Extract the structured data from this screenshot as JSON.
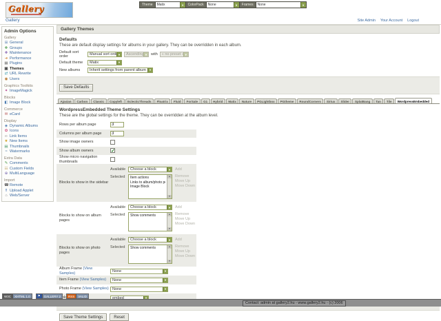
{
  "icons": {
    "dropdown_arrow": "▼",
    "scroll_up": "▲",
    "scroll_down": "▼",
    "checkmark": "✓"
  },
  "logo": {
    "title": "Gallery"
  },
  "topbar": {
    "theme_label": "Theme",
    "theme_value": "Matix",
    "colorpack_label": "ColorPack",
    "colorpack_value": "None",
    "frames_label": "Frames",
    "frames_value": "None"
  },
  "nav": {
    "breadcrumb": "Gallery",
    "links": [
      "Site Admin",
      "Your Account",
      "Logout"
    ]
  },
  "sidebar": {
    "title": "Admin Options",
    "entries": [
      {
        "label": "Gallery",
        "header": true
      },
      {
        "label": "General",
        "icon": "⊞",
        "icon_color": "#6b8cba"
      },
      {
        "label": "Groups",
        "icon": "❖",
        "icon_color": "#4a9a4a"
      },
      {
        "label": "Maintenance",
        "icon": "✚",
        "icon_color": "#8a6ab5"
      },
      {
        "label": "Performance",
        "icon": "➜",
        "icon_color": "#d08030"
      },
      {
        "label": "Plugins",
        "icon": "▦",
        "icon_color": "#777777"
      },
      {
        "label": "Themes",
        "icon": "▣",
        "icon_color": "#444444",
        "current": true
      },
      {
        "label": "URL Rewrite",
        "icon": "⇄",
        "icon_color": "#3a9ab0"
      },
      {
        "label": "Users",
        "icon": "◉",
        "icon_color": "#b5742a"
      },
      {
        "label": "Graphics Toolkits",
        "header": true
      },
      {
        "label": "ImageMagick",
        "icon": "✦",
        "icon_color": "#b03a8a"
      },
      {
        "label": "Blocks",
        "header": true
      },
      {
        "label": "Image Block",
        "icon": "◧",
        "icon_color": "#4a7ab0"
      },
      {
        "label": "Commerce",
        "header": true
      },
      {
        "label": "eCard",
        "icon": "✉",
        "icon_color": "#b04a4a"
      },
      {
        "label": "Display",
        "header": true
      },
      {
        "label": "Dynamic Albums",
        "icon": "◈",
        "icon_color": "#4a7ab0"
      },
      {
        "label": "Icons",
        "icon": "✿",
        "icon_color": "#d04a7a"
      },
      {
        "label": "Link Items",
        "icon": "∞",
        "icon_color": "#888888"
      },
      {
        "label": "New Items",
        "icon": "★",
        "icon_color": "#d0a020"
      },
      {
        "label": "Thumbnails",
        "icon": "▤",
        "icon_color": "#4a9a6a"
      },
      {
        "label": "Watermarks",
        "icon": "≈",
        "icon_color": "#6a8ab0"
      },
      {
        "label": "Extra Data",
        "header": true
      },
      {
        "label": "Comments",
        "icon": "✎",
        "icon_color": "#4a9a4a"
      },
      {
        "label": "Custom Fields",
        "icon": "☷",
        "icon_color": "#b08a3a"
      },
      {
        "label": "MultiLanguage",
        "icon": "⊕",
        "icon_color": "#7a6ab0"
      },
      {
        "label": "Import",
        "header": true
      },
      {
        "label": "Remote",
        "icon": "☎",
        "icon_color": "#555555"
      },
      {
        "label": "Upload Applet",
        "icon": "⇑",
        "icon_color": "#3a6ab0"
      },
      {
        "label": "Web/Server",
        "icon": "⌂",
        "icon_color": "#888888"
      }
    ]
  },
  "main": {
    "title": "Gallery Themes",
    "defaults": {
      "heading": "Defaults",
      "description": "These are default display settings for albums in your gallery. They can be overridden in each album.",
      "sort_label": "Default sort order",
      "sort_value": "Manual sort order",
      "sort_dir_value": "Ascending",
      "with_label": "with",
      "preset_value": "« no preset »",
      "theme_label": "Default theme",
      "theme_value": "Matix",
      "albums_label": "New albums",
      "albums_value": "Inherit settings from parent album",
      "save_label": "Save Defaults"
    },
    "tabs": [
      {
        "label": "Ajaxian"
      },
      {
        "label": "Carbon"
      },
      {
        "label": "Classic"
      },
      {
        "label": "Copyleft"
      },
      {
        "label": "EclecticThreads"
      },
      {
        "label": "Floatrix"
      },
      {
        "label": "Fluid"
      },
      {
        "label": "ForSale"
      },
      {
        "label": "G1"
      },
      {
        "label": "Hybrid"
      },
      {
        "label": "Matix"
      },
      {
        "label": "Nature"
      },
      {
        "label": "PGLightbox"
      },
      {
        "label": "PGtheme"
      },
      {
        "label": "RoundCorners"
      },
      {
        "label": "Siriux"
      },
      {
        "label": "Slider"
      },
      {
        "label": "SplatBang"
      },
      {
        "label": "Tan"
      },
      {
        "label": "Tile"
      },
      {
        "label": "WordpressEmbedded",
        "active": true
      }
    ],
    "theme_settings": {
      "title": "WordpressEmbedded Theme Settings",
      "description": "These are the global settings for the theme. They can be overridden at the album level.",
      "labels": {
        "available": "Available",
        "selected": "Selected",
        "choose": "Choose a block",
        "add": "Add",
        "remove": "Remove",
        "move_up": "Move Up",
        "move_down": "Move Down"
      },
      "simple_rows": [
        {
          "label": "Rows per album page",
          "value": "3"
        },
        {
          "label": "Columns per album page",
          "value": "3"
        },
        {
          "label": "Show image owners",
          "checked": false
        },
        {
          "label": "Show album owners",
          "checked": true
        },
        {
          "label": "Show micro navigation thumbnails",
          "checked": false
        }
      ],
      "block_rows": [
        {
          "label": "Blocks to show in the sidebar",
          "selected_items": [
            "Item actions",
            "Links to album/photo peers",
            "Image Block"
          ]
        },
        {
          "label": "Blocks to show on album pages",
          "selected_items": [
            "Show comments"
          ]
        },
        {
          "label": "Blocks to show on photo pages",
          "selected_items": [
            "Show comments"
          ]
        }
      ],
      "frame_rows": [
        {
          "label": "Album Frame",
          "link": "(View Samples)",
          "value": "None"
        },
        {
          "label": "Item Frame",
          "link": "(View Samples)",
          "value": "None"
        },
        {
          "label": "Photo Frame",
          "link": "(View Samples)",
          "value": "None"
        }
      ],
      "colorpack_label": "Color Pack",
      "colorpack_value": "embed",
      "save_label": "Save Theme Settings",
      "reset_label": "Reset"
    }
  },
  "footer": {
    "badges": [
      {
        "left": "W3C",
        "right": "XHTML 1.0",
        "left_bg": "#5a5a5a"
      },
      {
        "left": "⚑",
        "right": "GALLERY 2",
        "left_bg": "#31559c"
      },
      {
        "left": "RSS",
        "right": "VALID",
        "left_bg": "#d06018"
      }
    ],
    "contact": "Contact: admin at gallery2.hu - www.gallery2.hu - (c) 2006"
  }
}
